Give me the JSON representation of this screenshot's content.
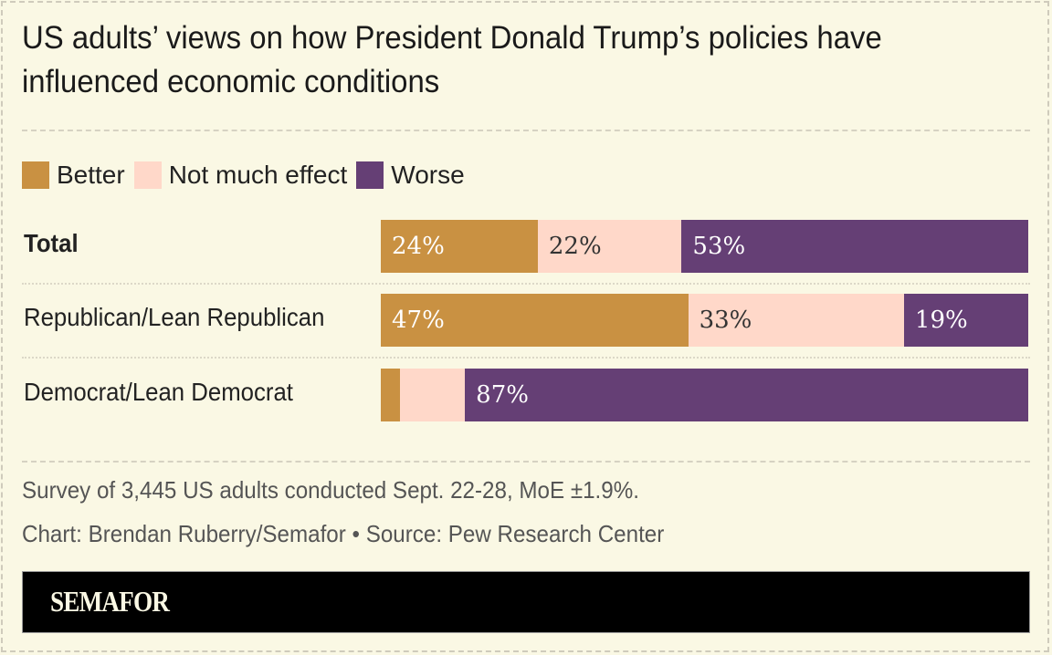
{
  "chart_data": {
    "type": "bar",
    "orientation": "horizontal-stacked-100",
    "title": "US adults’ views on how President Donald Trump’s policies have influenced economic conditions",
    "legend": [
      {
        "name": "Better",
        "color": "#c99142"
      },
      {
        "name": "Not much effect",
        "color": "#ffd8c9"
      },
      {
        "name": "Worse",
        "color": "#653f75"
      }
    ],
    "legend_placement": "top-left",
    "categories": [
      "Total",
      "Republican/Lean Republican",
      "Democrat/Lean Democrat"
    ],
    "series": [
      {
        "name": "Better",
        "values": [
          24,
          47,
          3
        ],
        "labels": [
          "24%",
          "47%",
          ""
        ]
      },
      {
        "name": "Not much effect",
        "values": [
          22,
          33,
          10
        ],
        "labels": [
          "22%",
          "33%",
          ""
        ]
      },
      {
        "name": "Worse",
        "values": [
          53,
          19,
          87
        ],
        "labels": [
          "53%",
          "19%",
          "87%"
        ]
      }
    ],
    "label_colors": [
      "#ffffff",
      "#333333",
      "#ffffff"
    ],
    "bold_categories": [
      "Total"
    ]
  },
  "notes": {
    "survey": "Survey of 3,445 US adults conducted Sept. 22-28, MoE ±1.9%.",
    "credit": "Chart: Brendan Ruberry/Semafor • Source: Pew Research Center"
  },
  "footer": {
    "logo": "SEMAFOR"
  }
}
